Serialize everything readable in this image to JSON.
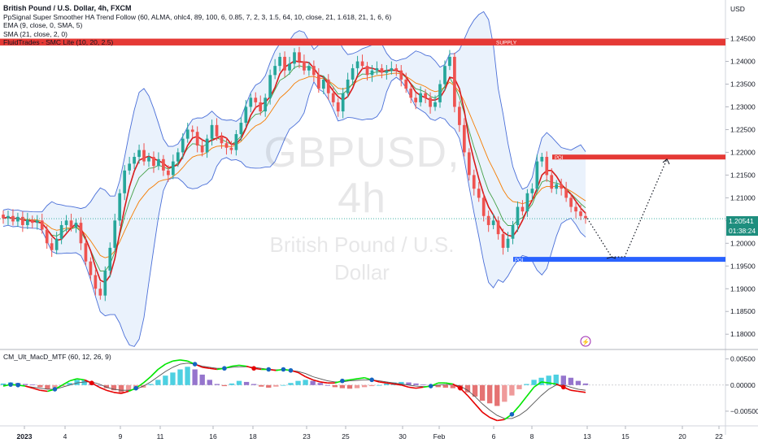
{
  "header": {
    "title": "British Pound / U.S. Dollar, 4h, FXCM",
    "indicators": [
      "PpSignal Super Smoother HA Trend Follow (60, ALMA, ohlc4, 89, 100, 6, 0.85, 7, 2, 3, 1.5, 64, 10, close, 21, 1.618, 21, 1, 6, 6)",
      "EMA (9, close, 0, SMA, 5)",
      "SMA (21, close, 2, 0)",
      "FluidTrades - SMC Lite  (10, 20, 2.5)"
    ]
  },
  "watermark": {
    "symbol": "GBPUSD, 4h",
    "name": "British Pound / U.S. Dollar"
  },
  "price_axis": {
    "unit": "USD",
    "ticks": [
      "1.24500",
      "1.24000",
      "1.23500",
      "1.23000",
      "1.22500",
      "1.22000",
      "1.21500",
      "1.21000",
      "1.20500",
      "1.20000",
      "1.19500",
      "1.19000",
      "1.18500",
      "1.18000"
    ],
    "current_price": "1.20541",
    "countdown": "01:38:24"
  },
  "zones": {
    "supply_label": "SUPPLY",
    "poi_label": "POI",
    "upper_box_label": "POI"
  },
  "oscillator": {
    "label": "CM_Ult_MacD_MTF (60, 12, 26, 9)",
    "ticks": [
      "0.00500",
      "0.00000",
      "−0.00500"
    ]
  },
  "time_axis": {
    "labels": [
      "2023",
      "4",
      "9",
      "11",
      "16",
      "18",
      "23",
      "25",
      "30",
      "Feb",
      "6",
      "8",
      "13",
      "15",
      "20",
      "22"
    ]
  },
  "colors": {
    "up": "#26a69a",
    "down": "#ef5350",
    "bb_line": "#4a6fd8",
    "bb_fill": "#e3eefb",
    "sma": "#d81b1b",
    "ema": "#43a047",
    "orange": "#f57c00",
    "supply": "#e53935",
    "poi": "#2962ff",
    "hist_up": "#4dd0e1",
    "hist_up_weak": "#9575cd",
    "hist_down": "#e57373",
    "macd_up": "#00e600",
    "macd_down": "#e60000",
    "signal": "#555555"
  },
  "chart_data": {
    "type": "candlestick",
    "title": "British Pound / U.S. Dollar, 4h, FXCM",
    "ylabel": "USD",
    "ylim": [
      1.177,
      1.2535
    ],
    "x_labels": [
      "2023",
      "4",
      "9",
      "11",
      "16",
      "18",
      "23",
      "25",
      "30",
      "Feb",
      "6",
      "8",
      "13",
      "15",
      "20",
      "22"
    ],
    "close_series": [
      1.2055,
      1.206,
      1.2048,
      1.2058,
      1.204,
      1.2052,
      1.2045,
      1.205,
      1.203,
      1.2,
      1.1985,
      1.201,
      1.204,
      1.205,
      1.2035,
      1.2045,
      1.2,
      1.196,
      1.193,
      1.19,
      1.1885,
      1.194,
      1.199,
      1.205,
      1.211,
      1.216,
      1.2175,
      1.219,
      1.2205,
      1.218,
      1.219,
      1.217,
      1.2185,
      1.216,
      1.215,
      1.218,
      1.22,
      1.223,
      1.225,
      1.2245,
      1.2215,
      1.22,
      1.223,
      1.226,
      1.2235,
      1.222,
      1.221,
      1.2205,
      1.224,
      1.2265,
      1.23,
      1.232,
      1.231,
      1.229,
      1.232,
      1.237,
      1.239,
      1.241,
      1.238,
      1.2395,
      1.242,
      1.24,
      1.238,
      1.239,
      1.237,
      1.234,
      1.236,
      1.233,
      1.231,
      1.229,
      1.233,
      1.236,
      1.2385,
      1.24,
      1.239,
      1.237,
      1.238,
      1.2385,
      1.2375,
      1.238,
      1.2385,
      1.238,
      1.236,
      1.234,
      1.232,
      1.231,
      1.233,
      1.232,
      1.23,
      1.231,
      1.235,
      1.239,
      1.241,
      1.23,
      1.226,
      1.22,
      1.215,
      1.212,
      1.21,
      1.206,
      1.204,
      1.205,
      1.202,
      1.199,
      1.201,
      1.204,
      1.208,
      1.207,
      1.211,
      1.212,
      1.218,
      1.219,
      1.215,
      1.212,
      1.213,
      1.212,
      1.21,
      1.208,
      1.207,
      1.206,
      1.2055
    ],
    "projection": [
      [
        1.2055,
        1.2
      ],
      [
        1.197,
        1.2185
      ]
    ],
    "bands": {
      "upper_color": "#4a6fd8",
      "fill": "#e3eefb"
    },
    "supply_zone": [
      1.2435,
      1.245
    ],
    "poi_zone": [
      1.1963,
      1.197
    ],
    "upper_zone": [
      1.2185,
      1.2195
    ],
    "current_price": 1.20541,
    "oscillator": {
      "name": "CM_Ult_MacD_MTF (60, 12, 26, 9)",
      "ylim": [
        -0.0075,
        0.0065
      ],
      "histogram": [
        0.0003,
        0.0005,
        0.0004,
        0.0002,
        0.0001,
        -0.0004,
        -0.0008,
        -0.0006,
        -0.0002,
        0.0004,
        0.001,
        0.001,
        0.0005,
        0.0,
        -0.0006,
        -0.001,
        -0.0014,
        -0.0012,
        -0.0008,
        -0.0005,
        0.0002,
        0.001,
        0.0018,
        0.0024,
        0.003,
        0.0035,
        0.003,
        0.002,
        0.001,
        0.0002,
        -0.0002,
        0.0003,
        0.0008,
        0.0006,
        0.0002,
        -0.0003,
        -0.0005,
        -0.0003,
        0.0,
        0.0004,
        0.0008,
        0.001,
        0.0008,
        0.0004,
        0.0,
        -0.0004,
        -0.0006,
        -0.0007,
        -0.0006,
        -0.0004,
        -0.0002,
        0.0,
        0.0003,
        0.0005,
        0.0006,
        0.0005,
        0.0003,
        0.0001,
        -0.0002,
        -0.0004,
        -0.0005,
        -0.0006,
        -0.0008,
        -0.0014,
        -0.0022,
        -0.003,
        -0.0035,
        -0.004,
        -0.0032,
        -0.002,
        -0.0008,
        0.0002,
        0.001,
        0.0014,
        0.0018,
        0.002,
        0.0018,
        0.0014,
        0.0008,
        0.0003
      ],
      "macd": [
        -0.0002,
        0.0001,
        0.0,
        -0.0002,
        -0.0006,
        -0.001,
        -0.0012,
        -0.0008,
        0.0,
        0.0008,
        0.0012,
        0.001,
        0.0004,
        -0.0004,
        -0.001,
        -0.0014,
        -0.0016,
        -0.0012,
        -0.0006,
        0.0004,
        0.0016,
        0.003,
        0.004,
        0.0046,
        0.0048,
        0.0046,
        0.004,
        0.0034,
        0.0032,
        0.003,
        0.0032,
        0.0036,
        0.0038,
        0.0036,
        0.0032,
        0.003,
        0.003,
        0.0028,
        0.003,
        0.0028,
        0.0024,
        0.0016,
        0.001,
        0.0006,
        0.0004,
        0.0004,
        0.0008,
        0.001,
        0.0012,
        0.0014,
        0.001,
        0.0006,
        0.0004,
        0.0002,
        0.0,
        -0.0004,
        -0.0006,
        -0.0004,
        -0.0002,
        0.0004,
        0.0004,
        0.0002,
        -0.0006,
        -0.002,
        -0.0036,
        -0.0052,
        -0.0062,
        -0.0068,
        -0.0066,
        -0.0056,
        -0.004,
        -0.0022,
        -0.0004,
        0.0006,
        0.0004,
        0.0002,
        -0.0004,
        -0.001,
        -0.0012,
        -0.0014
      ],
      "signal": [
        0.0,
        0.0,
        0.0,
        -0.0002,
        -0.0004,
        -0.0006,
        -0.0008,
        -0.0008,
        -0.0004,
        0.0,
        0.0004,
        0.0006,
        0.0006,
        0.0002,
        -0.0004,
        -0.0008,
        -0.001,
        -0.001,
        -0.0008,
        -0.0002,
        0.0006,
        0.0016,
        0.0026,
        0.0034,
        0.004,
        0.0042,
        0.004,
        0.0036,
        0.0034,
        0.0032,
        0.0032,
        0.0034,
        0.0035,
        0.0035,
        0.0034,
        0.0032,
        0.003,
        0.0029,
        0.0029,
        0.0028,
        0.0026,
        0.0022,
        0.0016,
        0.0012,
        0.0008,
        0.0006,
        0.0006,
        0.0008,
        0.0009,
        0.001,
        0.001,
        0.0008,
        0.0006,
        0.0004,
        0.0002,
        0.0,
        -0.0002,
        -0.0003,
        -0.0002,
        0.0,
        0.0001,
        0.0001,
        -0.0002,
        -0.001,
        -0.0022,
        -0.0036,
        -0.0048,
        -0.0058,
        -0.0064,
        -0.0064,
        -0.0058,
        -0.0048,
        -0.0034,
        -0.002,
        -0.0008,
        0.0,
        0.0,
        -0.0004,
        -0.0008,
        -0.001
      ]
    }
  }
}
